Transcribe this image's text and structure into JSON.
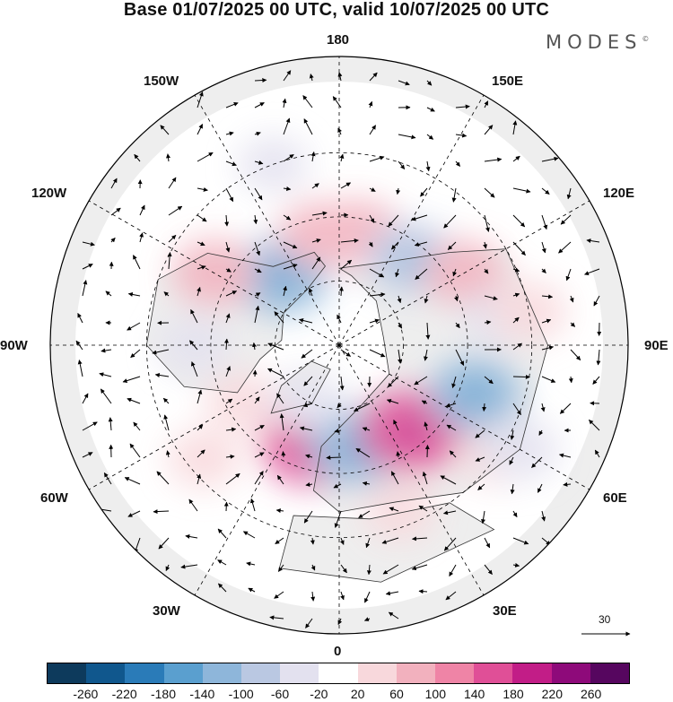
{
  "title": "Base 01/07/2025 00 UTC, valid 10/07/2025 00 UTC",
  "logo": "MODES",
  "logo_mark": "©",
  "longitude_labels": {
    "deg180": "180",
    "deg0": "0",
    "w150": "150W",
    "e150": "150E",
    "w120": "120W",
    "e120": "120E",
    "w90": "90W",
    "e90": "90E",
    "w60": "60W",
    "e60": "60E",
    "w30": "30W",
    "e30": "30E"
  },
  "reference_vector": {
    "label": "30"
  },
  "colorbar": {
    "colors": [
      "#0d3a5c",
      "#10578d",
      "#2a7bb8",
      "#5a9fcf",
      "#8eb6da",
      "#bac8e2",
      "#e3e1ef",
      "#ffffff",
      "#f8d8dc",
      "#f2b1be",
      "#ef84a6",
      "#e04f97",
      "#c21d87",
      "#8e0a7a",
      "#56065f"
    ],
    "labels": [
      "-260",
      "-220",
      "-180",
      "-140",
      "-100",
      "-60",
      "-20",
      "20",
      "60",
      "100",
      "140",
      "180",
      "220",
      "260"
    ]
  },
  "map": {
    "land_color": "#eeeeee",
    "anomalies": [
      {
        "lon": -140,
        "lat": 62,
        "value": -120
      },
      {
        "lon": -170,
        "lat": 55,
        "value": 70
      },
      {
        "lon": 170,
        "lat": 55,
        "value": 90
      },
      {
        "lon": 140,
        "lat": 55,
        "value": -100
      },
      {
        "lon": 120,
        "lat": 45,
        "value": 70
      },
      {
        "lon": 100,
        "lat": 40,
        "value": -30
      },
      {
        "lon": -120,
        "lat": 45,
        "value": 80
      },
      {
        "lon": -90,
        "lat": 45,
        "value": -40
      },
      {
        "lon": -60,
        "lat": 55,
        "value": 40
      },
      {
        "lon": -50,
        "lat": 35,
        "value": 40
      },
      {
        "lon": -15,
        "lat": 58,
        "value": 150
      },
      {
        "lon": 10,
        "lat": 58,
        "value": -130
      },
      {
        "lon": 40,
        "lat": 55,
        "value": 150
      },
      {
        "lon": 70,
        "lat": 45,
        "value": -110
      },
      {
        "lon": 55,
        "lat": 30,
        "value": 40
      },
      {
        "lon": 20,
        "lat": 35,
        "value": 40
      },
      {
        "lon": 100,
        "lat": 30,
        "value": 50
      },
      {
        "lon": -30,
        "lat": 70,
        "value": -40
      },
      {
        "lon": 60,
        "lat": 25,
        "value": -60
      },
      {
        "lon": -160,
        "lat": 30,
        "value": -30
      }
    ]
  }
}
